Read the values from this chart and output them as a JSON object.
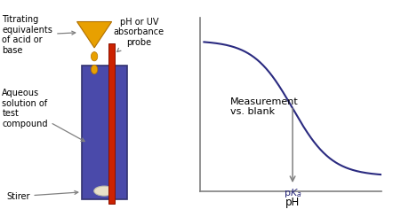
{
  "beaker_color": "#4a4aaa",
  "beaker_edge": "#333370",
  "probe_color": "#cc2200",
  "probe_edge": "#881100",
  "funnel_color": "#e8a000",
  "funnel_edge": "#b07000",
  "drop_color": "#e8a000",
  "stir_color": "#e8e0c8",
  "curve_color": "#2a2a80",
  "axis_color": "#808080",
  "arrow_color": "#808080",
  "label_color": "#000000",
  "pka_color": "#2a2a7a",
  "bg_color": "#ffffff",
  "label_titrating": "Titrating\nequivalents\nof acid or\nbase",
  "label_probe": "pH or UV\nabsorbance\nprobe",
  "label_aqueous": "Aqueous\nsolution of\ntest\ncompound",
  "label_stirer": "Stirer",
  "label_measurement": "Measurement\nvs. blank",
  "figsize": [
    4.42,
    2.45
  ],
  "dpi": 100
}
